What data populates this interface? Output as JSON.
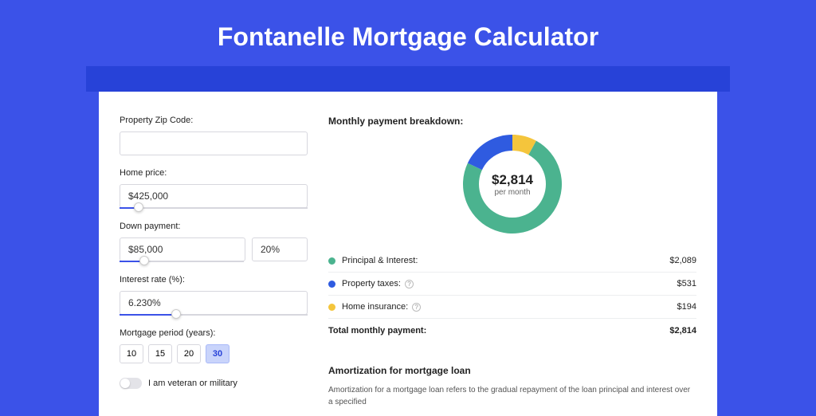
{
  "colors": {
    "page_bg": "#3b52e8",
    "strip_bg": "#2742d8",
    "card_bg": "#ffffff",
    "border": "#d7d7de"
  },
  "title": "Fontanelle Mortgage Calculator",
  "form": {
    "zip_label": "Property Zip Code:",
    "zip_value": "",
    "home_price_label": "Home price:",
    "home_price_value": "$425,000",
    "home_price_slider_pct": 10,
    "down_payment_label": "Down payment:",
    "down_payment_value": "$85,000",
    "down_payment_pct_value": "20%",
    "down_payment_slider_pct": 20,
    "interest_label": "Interest rate (%):",
    "interest_value": "6.230%",
    "interest_slider_pct": 30,
    "period_label": "Mortgage period (years):",
    "period_options": [
      "10",
      "15",
      "20",
      "30"
    ],
    "period_selected": "30",
    "veteran_label": "I am veteran or military",
    "veteran_on": false
  },
  "breakdown": {
    "title": "Monthly payment breakdown:",
    "donut": {
      "type": "donut",
      "amount": "$2,814",
      "sub": "per month",
      "size": 128,
      "thickness": 22,
      "slices": [
        {
          "label": "Principal & Interest",
          "value": 2089,
          "color": "#4bb38f",
          "start": 0.08,
          "end": 0.82
        },
        {
          "label": "Property taxes",
          "value": 531,
          "color": "#2f5be0",
          "start": 0.82,
          "end": 1.01
        },
        {
          "label": "Home insurance",
          "value": 194,
          "color": "#f4c53c",
          "start": 1.01,
          "end": 1.08
        }
      ]
    },
    "items": [
      {
        "label": "Principal & Interest:",
        "value": "$2,089",
        "color": "#4bb38f",
        "help": false
      },
      {
        "label": "Property taxes:",
        "value": "$531",
        "color": "#2f5be0",
        "help": true
      },
      {
        "label": "Home insurance:",
        "value": "$194",
        "color": "#f4c53c",
        "help": true
      }
    ],
    "total_label": "Total monthly payment:",
    "total_value": "$2,814"
  },
  "amortization": {
    "title": "Amortization for mortgage loan",
    "text": "Amortization for a mortgage loan refers to the gradual repayment of the loan principal and interest over a specified"
  }
}
